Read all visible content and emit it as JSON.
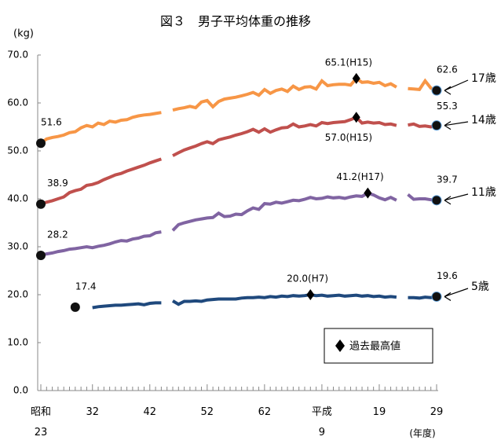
{
  "chart_data": {
    "type": "line",
    "title": "図３　男子平均体重の推移",
    "y_label": "(kg)",
    "x_label": "(年度)",
    "legend_label": "過去最高値",
    "categories": [
      "昭和\n23",
      null,
      null,
      null,
      null,
      null,
      null,
      null,
      null,
      "32",
      null,
      null,
      null,
      null,
      null,
      null,
      null,
      null,
      null,
      "42",
      null,
      null,
      null,
      null,
      null,
      null,
      null,
      null,
      null,
      "52",
      null,
      null,
      null,
      null,
      null,
      null,
      null,
      null,
      null,
      "62",
      null,
      null,
      null,
      null,
      null,
      null,
      null,
      null,
      null,
      "平成\n9",
      null,
      null,
      null,
      null,
      null,
      null,
      null,
      null,
      null,
      "19",
      null,
      null,
      null,
      null,
      null,
      null,
      null,
      null,
      null,
      "29"
    ],
    "ylim": [
      0,
      70
    ],
    "yticks": [
      {
        "value": 0,
        "label": "0.0"
      },
      {
        "value": 10,
        "label": "10.0"
      },
      {
        "value": 20,
        "label": "20.0"
      },
      {
        "value": 30,
        "label": "30.0"
      },
      {
        "value": 40,
        "label": "40.0"
      },
      {
        "value": 50,
        "label": "50.0"
      },
      {
        "value": 60,
        "label": "60.0"
      },
      {
        "value": 70,
        "label": "70.0"
      }
    ],
    "grid": false,
    "series": [
      {
        "name": "17歳",
        "color": "#f79646",
        "values": [
          51.6,
          52.5,
          52.8,
          53.0,
          53.3,
          53.8,
          54.0,
          54.8,
          55.3,
          55.0,
          55.8,
          55.5,
          56.2,
          56.0,
          56.4,
          56.5,
          57.0,
          57.3,
          57.5,
          57.6,
          57.8,
          58.0,
          null,
          58.5,
          58.8,
          59.0,
          59.3,
          59.0,
          60.2,
          60.5,
          59.2,
          60.3,
          60.8,
          61.0,
          61.2,
          61.5,
          61.8,
          62.2,
          61.6,
          62.8,
          62.0,
          62.6,
          62.9,
          62.4,
          63.5,
          62.8,
          63.3,
          63.4,
          62.9,
          64.6,
          63.6,
          63.8,
          63.9,
          63.9,
          63.7,
          65.1,
          64.3,
          64.4,
          64.1,
          64.3,
          63.6,
          64.0,
          63.3,
          null,
          63.0,
          62.9,
          62.8,
          64.6,
          63.1,
          62.6
        ],
        "value_labels": [
          "51.6",
          null,
          null,
          null,
          null,
          null,
          null,
          null,
          null,
          null,
          null,
          null,
          null,
          null,
          null,
          null,
          null,
          null,
          null,
          null,
          null,
          null,
          null,
          null,
          null,
          null,
          null,
          null,
          null,
          null,
          null,
          null,
          null,
          null,
          null,
          null,
          null,
          null,
          null,
          null,
          null,
          null,
          null,
          null,
          null,
          null,
          null,
          null,
          null,
          null,
          null,
          null,
          null,
          null,
          null,
          "65.1(H15)",
          null,
          null,
          null,
          null,
          null,
          null,
          null,
          null,
          null,
          null,
          null,
          null,
          null,
          "62.6"
        ]
      },
      {
        "name": "14歳",
        "color": "#c0504d",
        "values": [
          38.9,
          39.3,
          39.6,
          40.0,
          40.4,
          41.3,
          41.7,
          42.0,
          42.8,
          43.0,
          43.4,
          44.0,
          44.5,
          45.0,
          45.3,
          45.8,
          46.2,
          46.6,
          47.0,
          47.5,
          47.9,
          48.3,
          null,
          49.0,
          49.6,
          50.2,
          50.6,
          51.0,
          51.5,
          51.9,
          51.5,
          52.3,
          52.6,
          52.9,
          53.3,
          53.6,
          54.0,
          54.5,
          53.9,
          54.6,
          53.9,
          54.4,
          54.8,
          54.9,
          55.6,
          55.0,
          55.2,
          55.5,
          55.2,
          55.9,
          55.7,
          55.9,
          56.0,
          56.1,
          56.5,
          57.0,
          55.8,
          56.0,
          55.8,
          55.9,
          55.5,
          55.6,
          55.3,
          null,
          55.4,
          55.6,
          55.1,
          55.2,
          55.0,
          55.3
        ],
        "value_labels": [
          "38.9",
          null,
          null,
          null,
          null,
          null,
          null,
          null,
          null,
          null,
          null,
          null,
          null,
          null,
          null,
          null,
          null,
          null,
          null,
          null,
          null,
          null,
          null,
          null,
          null,
          null,
          null,
          null,
          null,
          null,
          null,
          null,
          null,
          null,
          null,
          null,
          null,
          null,
          null,
          null,
          null,
          null,
          null,
          null,
          null,
          null,
          null,
          null,
          null,
          null,
          null,
          null,
          null,
          null,
          null,
          "57.0(H15)",
          null,
          null,
          null,
          null,
          null,
          null,
          null,
          null,
          null,
          null,
          null,
          null,
          null,
          "55.3"
        ]
      },
      {
        "name": "11歳",
        "color": "#8064a2",
        "values": [
          28.2,
          28.5,
          28.7,
          29.0,
          29.2,
          29.5,
          29.6,
          29.8,
          30.0,
          29.8,
          30.1,
          30.3,
          30.6,
          31.0,
          31.3,
          31.2,
          31.6,
          31.8,
          32.2,
          32.3,
          32.9,
          33.1,
          null,
          33.4,
          34.6,
          35.0,
          35.3,
          35.6,
          35.8,
          36.0,
          36.1,
          37.0,
          36.3,
          36.4,
          36.8,
          36.7,
          37.5,
          38.1,
          37.8,
          39.0,
          38.9,
          39.3,
          39.1,
          39.4,
          39.7,
          39.6,
          39.9,
          40.3,
          40.0,
          40.1,
          40.4,
          40.2,
          40.3,
          40.1,
          40.4,
          40.6,
          40.5,
          41.2,
          40.8,
          40.2,
          39.8,
          40.3,
          39.7,
          null,
          40.9,
          39.9,
          40.0,
          40.0,
          39.8,
          39.7
        ],
        "value_labels": [
          "28.2",
          null,
          null,
          null,
          null,
          null,
          null,
          null,
          null,
          null,
          null,
          null,
          null,
          null,
          null,
          null,
          null,
          null,
          null,
          null,
          null,
          null,
          null,
          null,
          null,
          null,
          null,
          null,
          null,
          null,
          null,
          null,
          null,
          null,
          null,
          null,
          null,
          null,
          null,
          null,
          null,
          null,
          null,
          null,
          null,
          null,
          null,
          null,
          null,
          null,
          null,
          null,
          null,
          null,
          null,
          null,
          null,
          "41.2(H17)",
          null,
          null,
          null,
          null,
          null,
          null,
          null,
          null,
          null,
          null,
          null,
          "39.7"
        ]
      },
      {
        "name": "5歳",
        "color": "#1f497d",
        "values": [
          null,
          null,
          null,
          null,
          null,
          null,
          17.4,
          null,
          null,
          17.3,
          17.5,
          17.6,
          17.7,
          17.8,
          17.8,
          17.9,
          18.0,
          18.1,
          17.9,
          18.2,
          18.3,
          18.3,
          null,
          18.7,
          18.0,
          18.6,
          18.6,
          18.7,
          18.6,
          18.9,
          19.0,
          19.1,
          19.1,
          19.1,
          19.1,
          19.3,
          19.4,
          19.4,
          19.5,
          19.4,
          19.6,
          19.5,
          19.7,
          19.6,
          19.8,
          19.7,
          19.8,
          20.0,
          19.8,
          19.9,
          19.7,
          19.8,
          19.9,
          19.7,
          19.8,
          19.9,
          19.7,
          19.8,
          19.6,
          19.7,
          19.5,
          19.6,
          19.5,
          null,
          19.4,
          19.4,
          19.3,
          19.5,
          19.4,
          19.6
        ],
        "value_labels": [
          null,
          null,
          null,
          null,
          null,
          null,
          "17.4",
          null,
          null,
          null,
          null,
          null,
          null,
          null,
          null,
          null,
          null,
          null,
          null,
          null,
          null,
          null,
          null,
          null,
          null,
          null,
          null,
          null,
          null,
          null,
          null,
          null,
          null,
          null,
          null,
          null,
          null,
          null,
          null,
          null,
          null,
          null,
          null,
          null,
          null,
          null,
          null,
          "20.0(H7)",
          null,
          null,
          null,
          null,
          null,
          null,
          null,
          null,
          null,
          null,
          null,
          null,
          null,
          null,
          null,
          null,
          null,
          null,
          null,
          null,
          null,
          "19.6"
        ]
      }
    ]
  }
}
